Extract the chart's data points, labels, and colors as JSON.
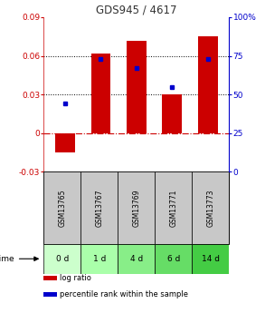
{
  "title": "GDS945 / 4617",
  "categories": [
    "GSM13765",
    "GSM13767",
    "GSM13769",
    "GSM13771",
    "GSM13773"
  ],
  "time_labels": [
    "0 d",
    "1 d",
    "4 d",
    "6 d",
    "14 d"
  ],
  "log_ratios": [
    -0.015,
    0.062,
    0.072,
    0.03,
    0.075
  ],
  "percentile_ranks": [
    44,
    73,
    67,
    55,
    73
  ],
  "ylim_left": [
    -0.03,
    0.09
  ],
  "ylim_right": [
    0,
    100
  ],
  "yticks_left": [
    -0.03,
    0,
    0.03,
    0.06,
    0.09
  ],
  "yticks_right": [
    0,
    25,
    50,
    75,
    100
  ],
  "hlines": [
    0.03,
    0.06
  ],
  "bar_color": "#cc0000",
  "dot_color": "#0000cc",
  "zero_line_color": "#cc0000",
  "title_color": "#333333",
  "left_axis_color": "#cc0000",
  "right_axis_color": "#0000cc",
  "gsm_bg": "#c8c8c8",
  "time_bg_colors": [
    "#ccffcc",
    "#aaffaa",
    "#88ee88",
    "#66dd66",
    "#44cc44"
  ],
  "fig_bg": "#ffffff",
  "legend_labels": [
    "log ratio",
    "percentile rank within the sample"
  ]
}
